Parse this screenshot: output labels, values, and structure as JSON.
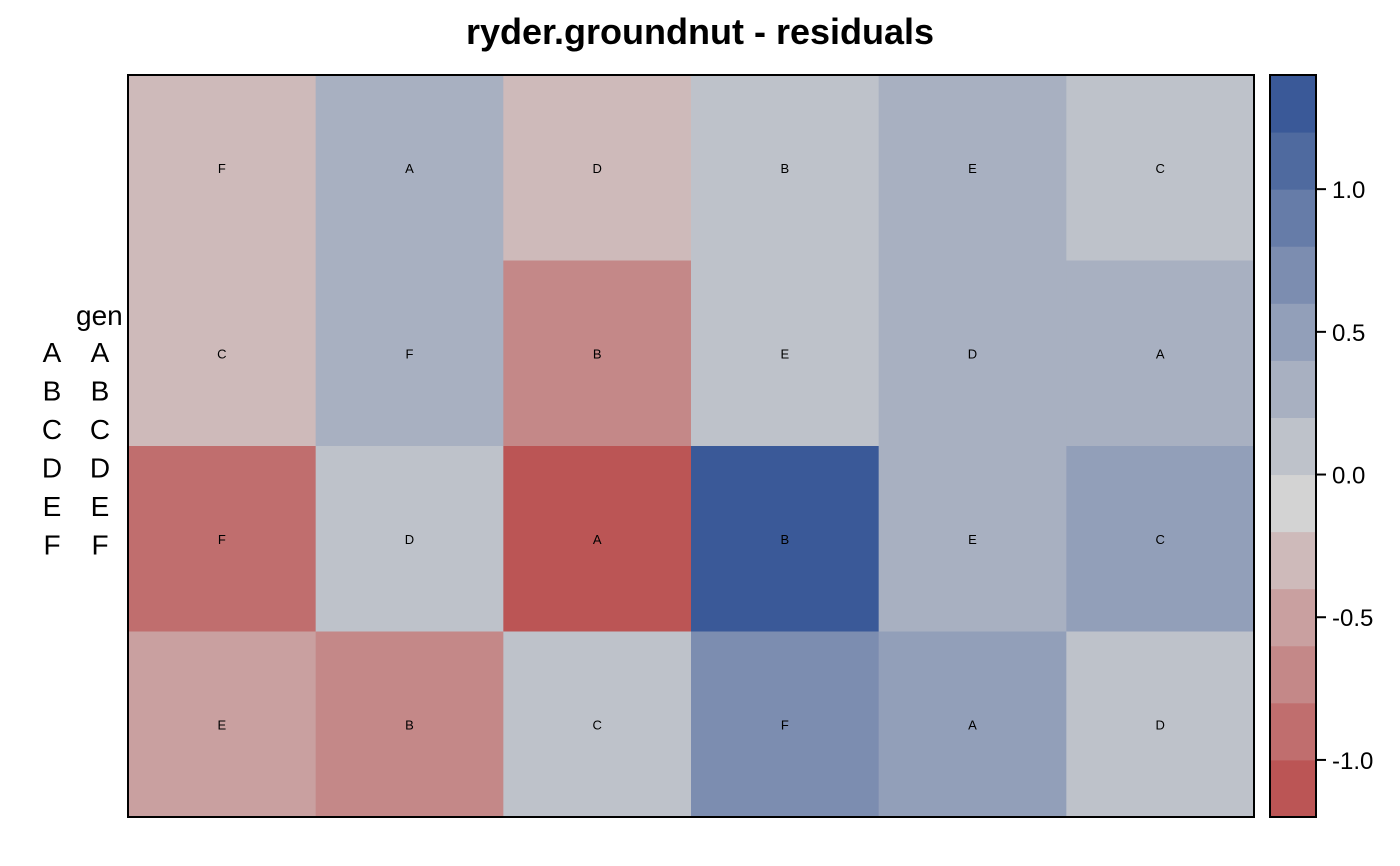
{
  "chart_data": {
    "type": "heatmap",
    "title": "ryder.groundnut - residuals",
    "n_cols": 6,
    "n_rows": 4,
    "color_scale": {
      "low_color": "#BB5555",
      "mid_color": "#D3D3D3",
      "high_color": "#3A5998",
      "breaks": [
        -1.2,
        -1.0,
        -0.8,
        -0.6,
        -0.4,
        -0.2,
        0.0,
        0.2,
        0.4,
        0.6,
        0.8,
        1.0,
        1.2,
        1.4
      ],
      "colors": [
        "#BB5555",
        "#C06E6E",
        "#C48888",
        "#C9A0A0",
        "#CEBABA",
        "#D3D3D3",
        "#BEC2CA",
        "#A8B0C1",
        "#929FB9",
        "#7C8DB0",
        "#667CA8",
        "#4F6A9F",
        "#3A5998"
      ],
      "ticks": [
        -1.0,
        -0.5,
        0.0,
        0.5,
        1.0
      ],
      "tick_labels": [
        "-1.0",
        "-0.5",
        "0.0",
        "0.5",
        "1.0"
      ]
    },
    "cells": [
      {
        "col": 1,
        "row": 1,
        "gen": "F",
        "value": -0.35
      },
      {
        "col": 2,
        "row": 1,
        "gen": "A",
        "value": 0.35
      },
      {
        "col": 3,
        "row": 1,
        "gen": "D",
        "value": -0.35
      },
      {
        "col": 4,
        "row": 1,
        "gen": "B",
        "value": 0.05
      },
      {
        "col": 5,
        "row": 1,
        "gen": "E",
        "value": 0.25
      },
      {
        "col": 6,
        "row": 1,
        "gen": "C",
        "value": 0.05
      },
      {
        "col": 1,
        "row": 2,
        "gen": "C",
        "value": -0.35
      },
      {
        "col": 2,
        "row": 2,
        "gen": "F",
        "value": 0.35
      },
      {
        "col": 3,
        "row": 2,
        "gen": "B",
        "value": -0.7
      },
      {
        "col": 4,
        "row": 2,
        "gen": "E",
        "value": 0.05
      },
      {
        "col": 5,
        "row": 2,
        "gen": "D",
        "value": 0.35
      },
      {
        "col": 6,
        "row": 2,
        "gen": "A",
        "value": 0.35
      },
      {
        "col": 1,
        "row": 3,
        "gen": "F",
        "value": -0.9
      },
      {
        "col": 2,
        "row": 3,
        "gen": "D",
        "value": 0.05
      },
      {
        "col": 3,
        "row": 3,
        "gen": "A",
        "value": -1.1
      },
      {
        "col": 4,
        "row": 3,
        "gen": "B",
        "value": 1.3
      },
      {
        "col": 5,
        "row": 3,
        "gen": "E",
        "value": 0.25
      },
      {
        "col": 6,
        "row": 3,
        "gen": "C",
        "value": 0.5
      },
      {
        "col": 1,
        "row": 4,
        "gen": "E",
        "value": -0.5
      },
      {
        "col": 2,
        "row": 4,
        "gen": "B",
        "value": -0.7
      },
      {
        "col": 3,
        "row": 4,
        "gen": "C",
        "value": 0.05
      },
      {
        "col": 4,
        "row": 4,
        "gen": "F",
        "value": 0.7
      },
      {
        "col": 5,
        "row": 4,
        "gen": "A",
        "value": 0.5
      },
      {
        "col": 6,
        "row": 4,
        "gen": "D",
        "value": 0.05
      }
    ],
    "legend": {
      "title": "gen",
      "keys": [
        "A",
        "B",
        "C",
        "D",
        "E",
        "F"
      ],
      "labels": [
        "A",
        "B",
        "C",
        "D",
        "E",
        "F"
      ],
      "placement": "left"
    }
  }
}
